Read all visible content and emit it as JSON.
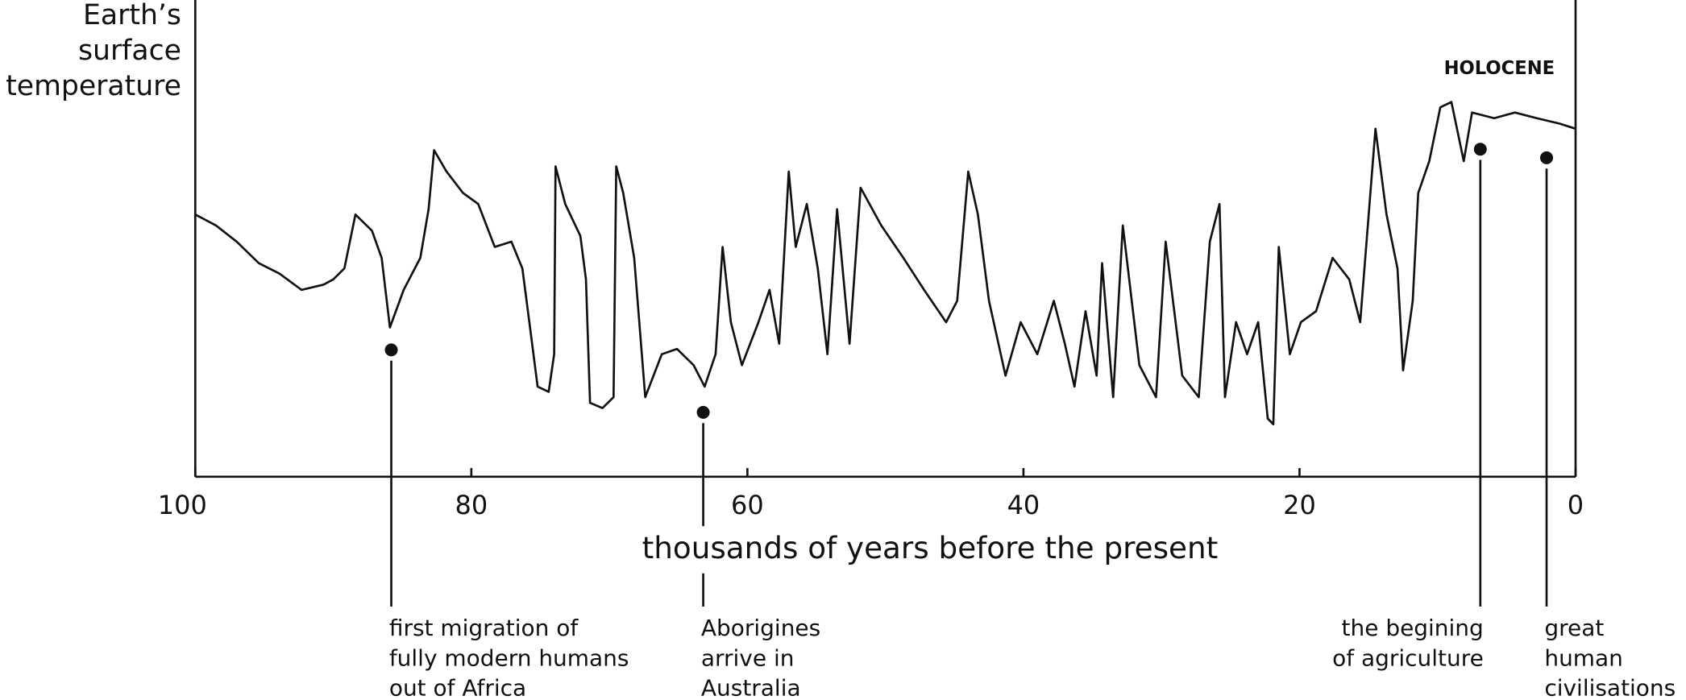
{
  "chart_data": {
    "type": "line",
    "y_label": [
      "Earth’s",
      "surface",
      "temperature"
    ],
    "x_label": "thousands of years before the present",
    "region_label": "HOLOCENE",
    "color": "#111111",
    "xlim": [
      100,
      0
    ],
    "xticks": [
      100,
      80,
      60,
      40,
      20,
      0
    ],
    "ylim": [
      0,
      100
    ],
    "x": [
      100,
      98.5,
      97.0,
      95.4,
      93.9,
      92.3,
      90.7,
      90.0,
      89.2,
      88.4,
      87.2,
      86.5,
      85.9,
      84.9,
      83.7,
      83.1,
      82.7,
      81.8,
      80.6,
      79.5,
      78.3,
      77.1,
      76.3,
      75.8,
      75.2,
      74.4,
      74.0,
      73.9,
      73.2,
      72.1,
      71.7,
      71.4,
      70.5,
      69.7,
      69.5,
      69.0,
      68.2,
      67.4,
      66.2,
      65.1,
      63.9,
      63.1,
      62.3,
      61.8,
      61.2,
      60.4,
      59.2,
      58.4,
      57.7,
      57.0,
      56.5,
      55.7,
      54.9,
      54.2,
      53.5,
      52.6,
      51.8,
      50.3,
      48.7,
      47.2,
      45.6,
      44.8,
      44.0,
      43.3,
      42.5,
      41.3,
      40.2,
      39.0,
      37.8,
      37.0,
      36.3,
      35.5,
      34.7,
      34.3,
      33.5,
      32.8,
      31.6,
      30.4,
      29.7,
      28.5,
      27.3,
      26.5,
      25.8,
      25.4,
      24.6,
      23.8,
      23.0,
      22.3,
      21.9,
      21.5,
      20.7,
      19.9,
      18.8,
      17.6,
      16.4,
      15.6,
      14.5,
      13.7,
      12.9,
      12.5,
      11.8,
      11.4,
      10.6,
      9.8,
      9.0,
      8.1,
      7.5,
      5.9,
      4.4,
      2.8,
      1.2,
      0
    ],
    "values": [
      55.0,
      52.7,
      49.3,
      44.8,
      42.6,
      39.2,
      40.3,
      41.4,
      43.7,
      55.0,
      51.6,
      45.9,
      31.3,
      39.2,
      45.9,
      56.1,
      68.5,
      64.0,
      59.5,
      57.2,
      48.2,
      49.3,
      43.7,
      32.4,
      18.9,
      17.8,
      25.7,
      65.1,
      57.2,
      50.5,
      41.4,
      15.5,
      14.4,
      16.7,
      65.1,
      59.5,
      45.9,
      16.7,
      25.7,
      26.8,
      23.4,
      18.9,
      25.7,
      48.2,
      32.4,
      23.4,
      32.4,
      39.2,
      27.9,
      64.0,
      48.2,
      57.2,
      43.7,
      25.7,
      56.1,
      27.9,
      60.6,
      52.7,
      45.9,
      39.2,
      32.4,
      36.9,
      64.0,
      55.0,
      36.9,
      21.2,
      32.4,
      25.7,
      36.9,
      27.9,
      18.9,
      34.7,
      21.2,
      44.8,
      16.7,
      52.7,
      23.4,
      16.7,
      49.3,
      21.2,
      16.7,
      49.3,
      57.2,
      16.7,
      32.4,
      25.7,
      32.4,
      12.2,
      11.0,
      48.2,
      25.7,
      32.4,
      34.7,
      45.9,
      41.4,
      32.4,
      73.0,
      55.0,
      43.7,
      22.3,
      36.9,
      59.5,
      66.2,
      77.5,
      78.6,
      66.2,
      76.4,
      75.2,
      76.4,
      75.2,
      74.1,
      73.0
    ],
    "annotations": [
      {
        "lines": [
          "first migration of",
          "fully modern humans",
          "out of Africa"
        ],
        "x": 85.8,
        "y": 26.6
      },
      {
        "lines": [
          "Aborigines",
          "arrive in",
          "Australia"
        ],
        "x": 63.2,
        "y": 13.5
      },
      {
        "lines": [
          "the begining",
          "of agriculture"
        ],
        "x": 6.9,
        "y": 68.7
      },
      {
        "lines": [
          "great",
          "human",
          "civilisations"
        ],
        "x": 2.1,
        "y": 66.9
      }
    ]
  }
}
